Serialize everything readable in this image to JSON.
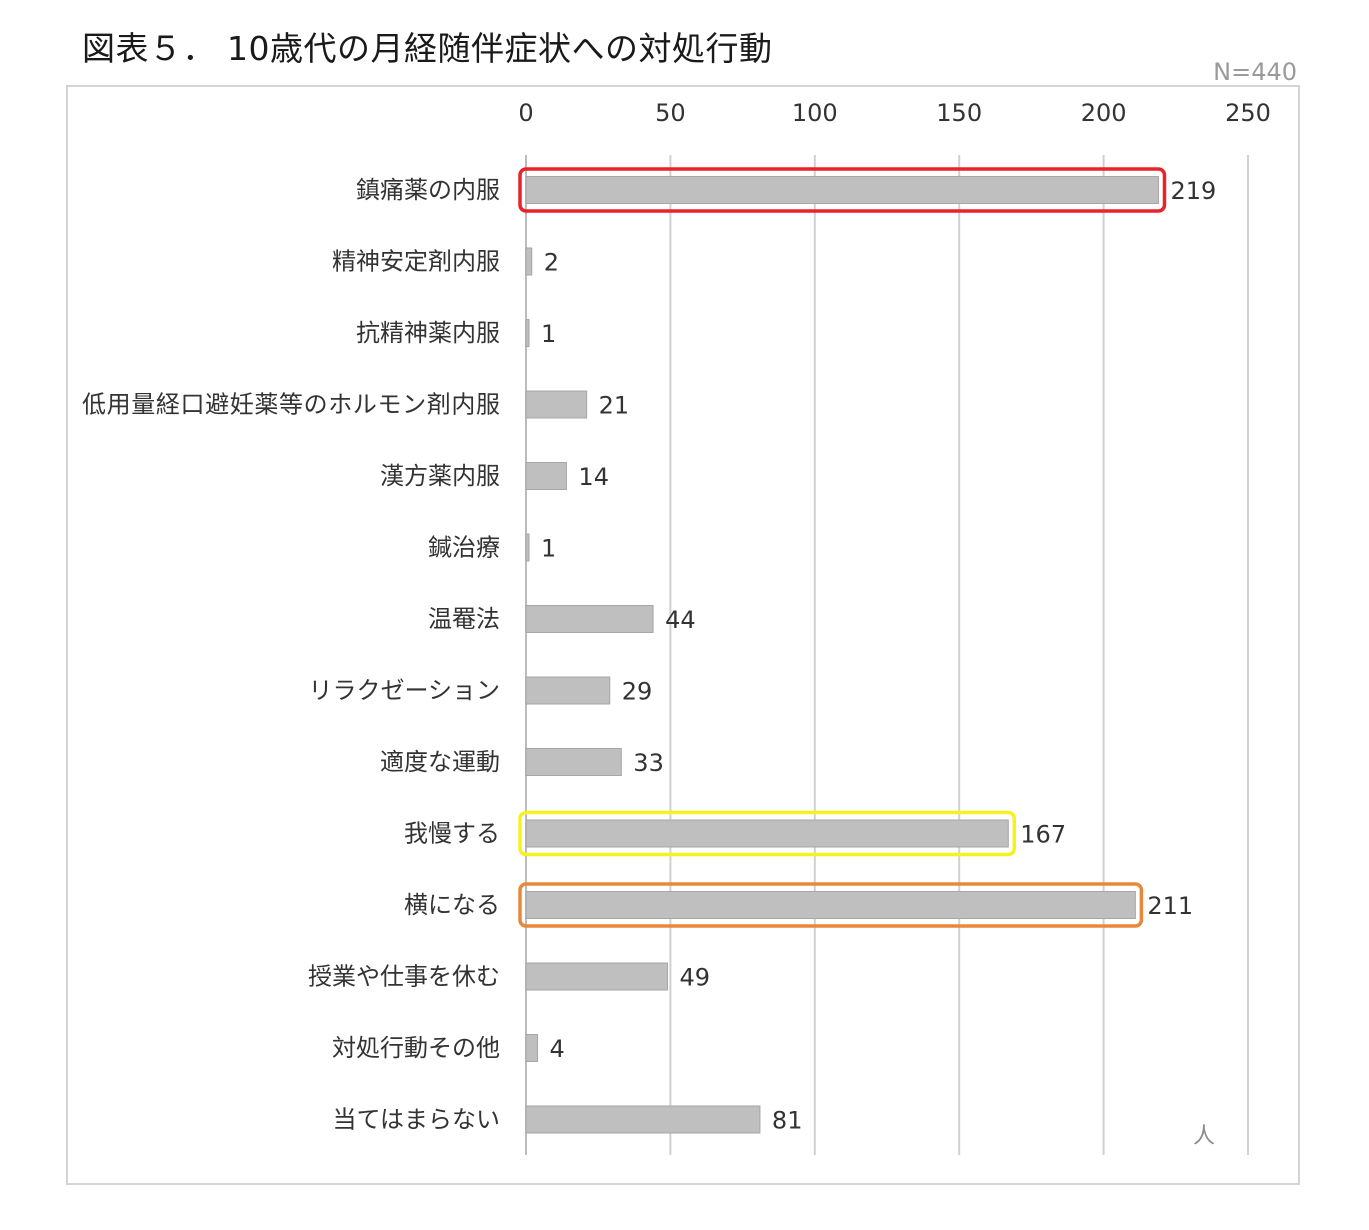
{
  "title": "図表５． 10歳代の月経随伴症状への対処行動",
  "sample_size": "N=440",
  "unit": "人",
  "colors": {
    "bar": "#bfbfbf",
    "bar_border": "#a6a6a6",
    "gridline": "#d0d0d0",
    "highlight_top": "#e8242a",
    "highlight_endure": "#f5f21f",
    "highlight_lie_down": "#e8883a"
  },
  "chart_data": {
    "type": "bar",
    "orientation": "horizontal",
    "xlim": [
      0,
      250
    ],
    "x_ticks": [
      "0",
      "50",
      "100",
      "150",
      "200",
      "250"
    ],
    "grid": true,
    "categories": [
      "鎮痛薬の内服",
      "精神安定剤内服",
      "抗精神薬内服",
      "低用量経口避妊薬等のホルモン剤内服",
      "漢方薬内服",
      "鍼治療",
      "温罨法",
      "リラクゼーション",
      "適度な運動",
      "我慢する",
      "横になる",
      "授業や仕事を休む",
      "対処行動その他",
      "当てはまらない"
    ],
    "values": [
      219,
      2,
      1,
      21,
      14,
      1,
      44,
      29,
      33,
      167,
      211,
      49,
      4,
      81
    ],
    "highlighted": [
      {
        "category": "鎮痛薬の内服",
        "color": "#e8242a"
      },
      {
        "category": "我慢する",
        "color": "#f5f21f"
      },
      {
        "category": "横になる",
        "color": "#e8883a"
      }
    ]
  }
}
